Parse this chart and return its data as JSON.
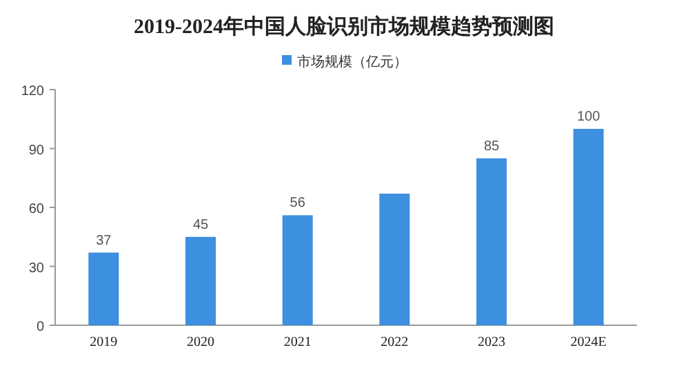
{
  "chart_data": {
    "type": "bar",
    "title": "2019-2024年中国人脸识别市场规模趋势预测图",
    "categories": [
      "2019",
      "2020",
      "2021",
      "2022",
      "2023",
      "2024E"
    ],
    "series": [
      {
        "name": "市场规模（亿元）",
        "color": "#3d8fe0",
        "values": [
          37,
          45,
          56,
          67,
          85,
          100
        ],
        "value_labels": [
          "37",
          "45",
          "56",
          null,
          "85",
          "100"
        ]
      }
    ],
    "ylim": [
      0,
      120
    ],
    "yticks": [
      0,
      30,
      60,
      90,
      120
    ],
    "legend": "top"
  }
}
